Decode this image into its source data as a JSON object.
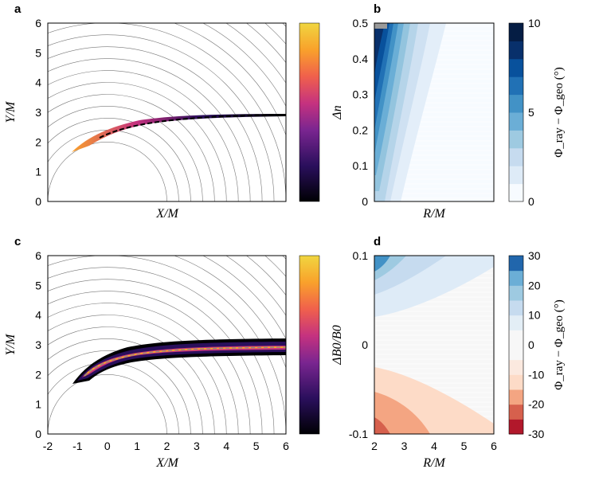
{
  "chart_data": [
    {
      "panel": "a",
      "type": "ray-trace",
      "xlabel": "X/M",
      "ylabel": "Y/M",
      "xlim": [
        -2,
        6
      ],
      "ylim": [
        0,
        6
      ],
      "yticks": [
        "0",
        "1",
        "2",
        "3",
        "4",
        "5",
        "6"
      ],
      "colorbar": {
        "colormap": "inferno-like",
        "ticks": []
      }
    },
    {
      "panel": "b",
      "type": "contour",
      "xlabel": "R/M",
      "ylabel": "Δn",
      "xlim": [
        2,
        6
      ],
      "ylim": [
        0,
        0.5
      ],
      "yticks": [
        "0",
        "0.1",
        "0.2",
        "0.3",
        "0.4",
        "0.5"
      ],
      "colorbar": {
        "label": "Φ_ray − Φ_geo (°)",
        "range": [
          0,
          10
        ],
        "ticks": [
          "0",
          "5",
          "10"
        ],
        "levels": 10
      }
    },
    {
      "panel": "c",
      "type": "ray-trace",
      "xlabel": "X/M",
      "ylabel": "Y/M",
      "xlim": [
        -2,
        6
      ],
      "ylim": [
        0,
        6
      ],
      "xticks": [
        "-2",
        "-1",
        "0",
        "1",
        "2",
        "3",
        "4",
        "5",
        "6"
      ],
      "yticks": [
        "0",
        "1",
        "2",
        "3",
        "4",
        "5",
        "6"
      ],
      "colorbar": {
        "colormap": "inferno-like",
        "ticks": []
      }
    },
    {
      "panel": "d",
      "type": "contour",
      "xlabel": "R/M",
      "ylabel": "ΔB0/B0",
      "xlim": [
        2,
        6
      ],
      "ylim": [
        -0.1,
        0.1
      ],
      "xticks": [
        "2",
        "3",
        "4",
        "5",
        "6"
      ],
      "yticks": [
        "-0.1",
        "0",
        "0.1"
      ],
      "colorbar": {
        "label": "Φ_ray − Φ_geo (°)",
        "range": [
          -30,
          30
        ],
        "ticks": [
          "30",
          "20",
          "10",
          "0",
          "-10",
          "-20",
          "-30"
        ],
        "levels": 12
      }
    }
  ],
  "panel_labels": [
    "a",
    "b",
    "c",
    "d"
  ],
  "colors": {
    "blue_dark": "#08306b",
    "red_dark": "#b2182b",
    "grid": "#cccccc"
  }
}
